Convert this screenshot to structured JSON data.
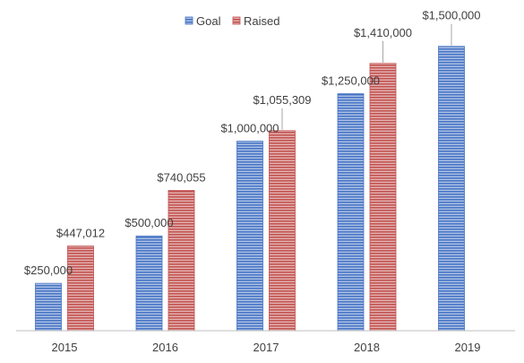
{
  "chart_data": {
    "type": "bar",
    "title": "",
    "xlabel": "",
    "ylabel": "",
    "categories": [
      "2015",
      "2016",
      "2017",
      "2018",
      "2019"
    ],
    "series": [
      {
        "name": "Goal",
        "color": "#4472C4",
        "values": [
          250000,
          500000,
          1000000,
          1250000,
          1500000
        ],
        "labels": [
          "$250,000",
          "$500,000",
          "$1,000,000",
          "$1,250,000",
          "$1,500,000"
        ]
      },
      {
        "name": "Raised",
        "color": "#C0504D",
        "values": [
          447012,
          740055,
          1055309,
          1410000,
          null
        ],
        "labels": [
          "$447,012",
          "$740,055",
          "$1,055,309",
          "$1,410,000",
          ""
        ]
      }
    ],
    "ylim": [
      0,
      1650000
    ],
    "grid": false,
    "legend_position": "top",
    "fill_pattern": "horizontal-stripes"
  }
}
